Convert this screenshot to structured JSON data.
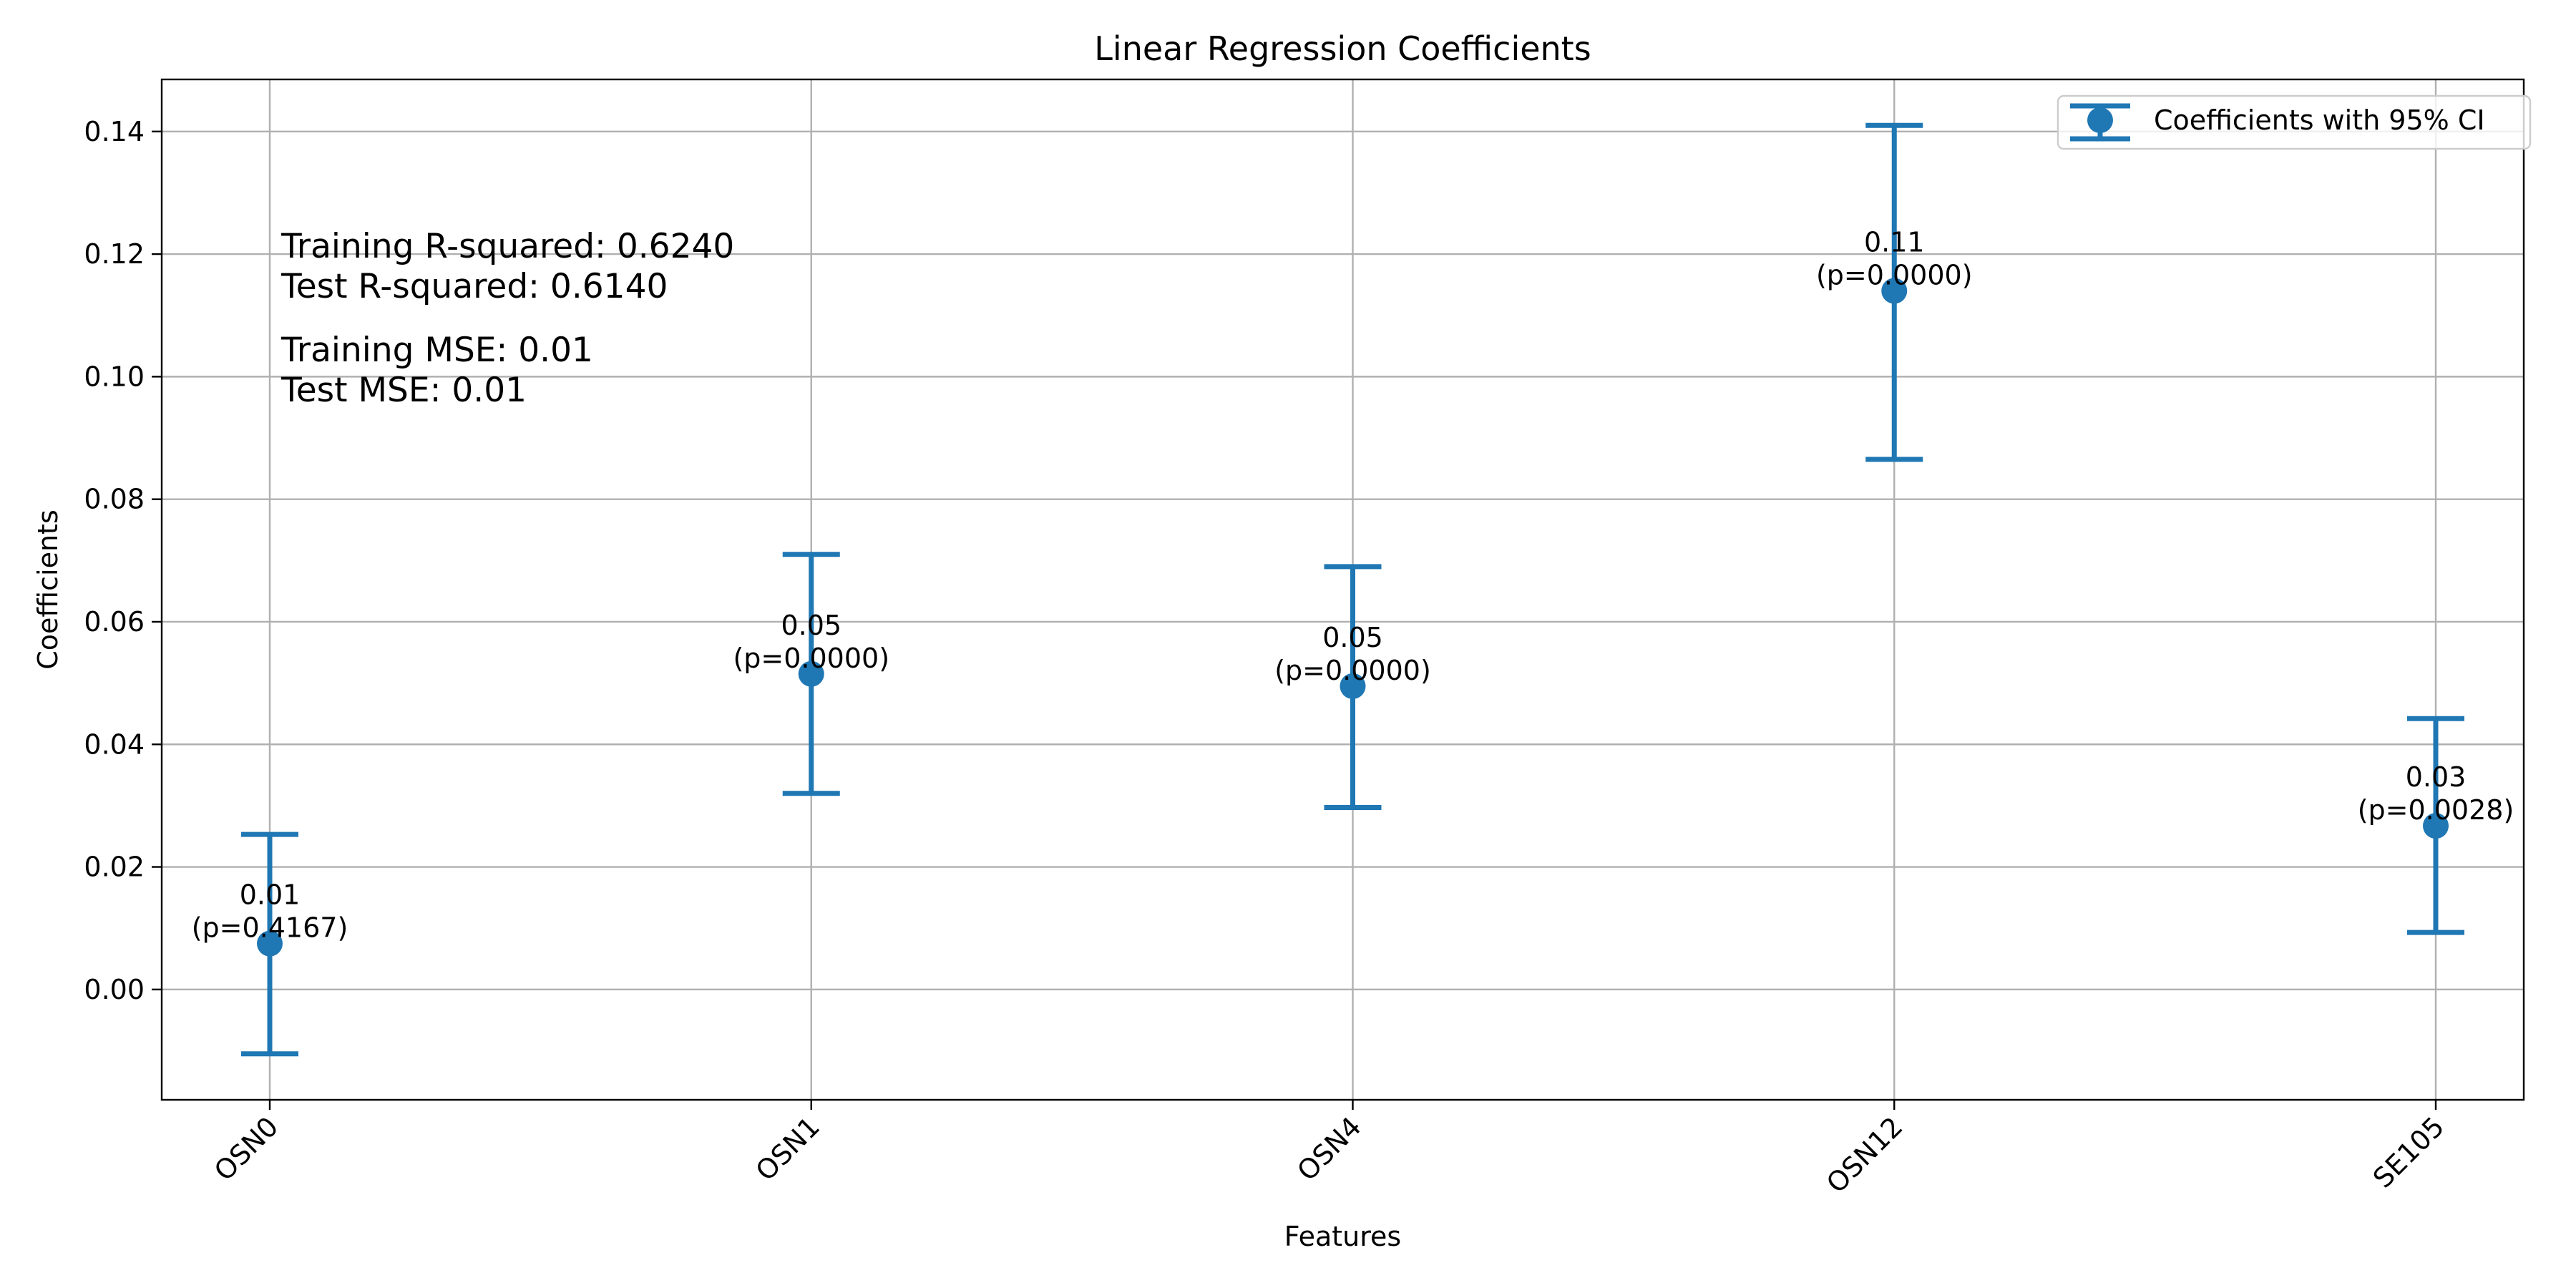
{
  "chart_data": {
    "type": "scatter",
    "title": "Linear Regression Coefficients",
    "xlabel": "Features",
    "ylabel": "Coefficients",
    "categories": [
      "OSN0",
      "OSN1",
      "OSN4",
      "OSN12",
      "SE105"
    ],
    "series": [
      {
        "name": "Coefficients with 95% CI",
        "values": [
          0.0075,
          0.0515,
          0.0495,
          0.114,
          0.0267
        ],
        "ci_lower": [
          -0.0105,
          0.032,
          0.0297,
          0.0865,
          0.0093
        ],
        "ci_upper": [
          0.0253,
          0.071,
          0.069,
          0.141,
          0.0442
        ],
        "value_labels": [
          "0.01",
          "0.05",
          "0.05",
          "0.11",
          "0.03"
        ],
        "p_labels": [
          "(p=0.4167)",
          "(p=0.0000)",
          "(p=0.0000)",
          "(p=0.0000)",
          "(p=0.0028)"
        ]
      }
    ],
    "ylim": [
      -0.018,
      0.1485
    ],
    "yticks": [
      0.0,
      0.02,
      0.04,
      0.06,
      0.08,
      0.1,
      0.12,
      0.14
    ],
    "ytick_labels": [
      "0.00",
      "0.02",
      "0.04",
      "0.06",
      "0.08",
      "0.10",
      "0.12",
      "0.14"
    ],
    "grid": true,
    "legend": "top-right",
    "color": "#1f77b4",
    "annotations": {
      "training_r2": "Training R-squared: 0.6240",
      "test_r2": "Test R-squared: 0.6140",
      "training_mse": "Training MSE: 0.01",
      "test_mse": "Test MSE: 0.01"
    }
  }
}
